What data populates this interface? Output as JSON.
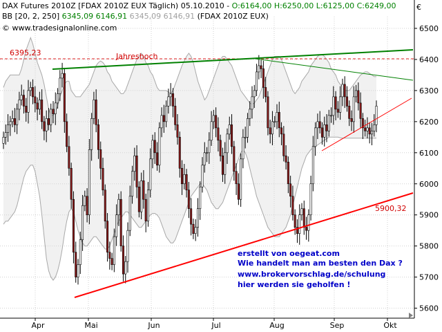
{
  "header": {
    "line1_prefix": "DAX Futures 2010Z [FDAX 2010Z EUX",
    "line1_date": "Täglich) 05.10.2010 - ",
    "line1_ohlc": "O:6164,00 H:6250,00 L:6125,00 C:6249,00",
    "line2_prefix": "BB [20, 2, 250]",
    "line2_values_green": "6345,09 6146,91",
    "line2_values_gray": "6345,09 6146,91",
    "line2_suffix": "(FDAX 2010Z EUX)",
    "line3": "© www.tradesignalonline.com",
    "currency_symbol": "€"
  },
  "annotations": {
    "line1": "erstellt von oegeat.com",
    "line2": "Wie handelt man am besten den Dax ?",
    "line3": "www.brokervorschlag.de/schulung",
    "line4": "hier werden sie geholfen !"
  },
  "colors": {
    "up_candle": "#ffffff",
    "down_candle": "#8b1a1a",
    "band": "#a8a8a8",
    "green_line": "#008000",
    "red_line": "#ff0000",
    "dashed": "#e02020"
  },
  "chart_data": {
    "type": "candlestick",
    "ylim": [
      5560,
      6560
    ],
    "y_ticks": [
      "6500",
      "6400",
      "6300",
      "6200",
      "6100",
      "6000",
      "5900",
      "5800",
      "5700",
      "5600"
    ],
    "x_ticks": [
      "Apr",
      "Mai",
      "Jun",
      "Jul",
      "Aug",
      "Sep",
      "Okt"
    ],
    "levels": [
      {
        "label": "6395,23",
        "value": 6395.23
      },
      {
        "label": "Jahreshoch",
        "value": 6395.23
      },
      {
        "label": "5900,32",
        "value": 5900.32
      }
    ],
    "closes": [
      6150,
      6165,
      6190,
      6200,
      6210,
      6190,
      6240,
      6270,
      6285,
      6250,
      6230,
      6300,
      6310,
      6280,
      6260,
      6240,
      6270,
      6200,
      6170,
      6210,
      6190,
      6240,
      6225,
      6260,
      6290,
      6340,
      6355,
      6200,
      6120,
      6050,
      5950,
      5780,
      5700,
      5740,
      5820,
      5930,
      5960,
      5900,
      6110,
      6210,
      6270,
      6190,
      6110,
      6050,
      5980,
      5880,
      5780,
      5760,
      5740,
      5830,
      5900,
      5950,
      5800,
      5710,
      5750,
      5850,
      5960,
      6040,
      6090,
      5990,
      5910,
      6010,
      5950,
      5880,
      5980,
      6080,
      6140,
      6100,
      6060,
      6180,
      6220,
      6200,
      6250,
      6280,
      6290,
      6250,
      6190,
      6150,
      6050,
      6000,
      6030,
      5980,
      5920,
      5870,
      5840,
      5860,
      5920,
      5990,
      6060,
      6100,
      6100,
      6140,
      6200,
      6220,
      6180,
      6140,
      6090,
      6030,
      6100,
      6160,
      6190,
      6120,
      6040,
      6000,
      5950,
      6080,
      6150,
      6150,
      6210,
      6240,
      6280,
      6300,
      6360,
      6380,
      6370,
      6310,
      6280,
      6180,
      6160,
      6200,
      6200,
      6230,
      6180,
      6160,
      6090,
      6070,
      6000,
      5960,
      5900,
      5860,
      5840,
      5900,
      5920,
      5860,
      5850,
      5900,
      6000,
      6120,
      6180,
      6200,
      6180,
      6150,
      6190,
      6170,
      6220,
      6220,
      6280,
      6240,
      6230,
      6280,
      6320,
      6280,
      6250,
      6210,
      6200,
      6280,
      6300,
      6260,
      6210,
      6180,
      6170,
      6180,
      6160,
      6170,
      6190,
      6250
    ],
    "band_upper": [
      6310,
      6330,
      6340,
      6350,
      6350,
      6350,
      6350,
      6350,
      6370,
      6400,
      6430,
      6450,
      6470,
      6450,
      6420,
      6390,
      6370,
      6350,
      6320,
      6280,
      6240,
      6220,
      6220,
      6230,
      6250,
      6280,
      6300,
      6320,
      6330,
      6330,
      6300,
      6290,
      6280,
      6280,
      6280,
      6290,
      6300,
      6310,
      6320,
      6340,
      6360,
      6380,
      6390,
      6395,
      6390,
      6380,
      6360,
      6350,
      6330,
      6320,
      6310,
      6300,
      6290,
      6290,
      6300,
      6320,
      6340,
      6360,
      6380,
      6400,
      6410,
      6420,
      6410,
      6390,
      6380,
      6360,
      6350,
      6330,
      6310,
      6300,
      6300,
      6300,
      6300,
      6295,
      6290,
      6300,
      6320,
      6340,
      6360,
      6380,
      6395,
      6410,
      6420,
      6410,
      6390,
      6360,
      6330,
      6310,
      6290,
      6270,
      6280,
      6300,
      6320,
      6340,
      6360,
      6380,
      6400,
      6410,
      6410,
      6400,
      6390,
      6380,
      6360,
      6340,
      6320,
      6300,
      6290,
      6280,
      6270,
      6260,
      6255,
      6260,
      6270,
      6280,
      6300,
      6320,
      6340,
      6360,
      6380,
      6400,
      6410,
      6410,
      6410,
      6400,
      6380,
      6360,
      6340,
      6320,
      6300,
      6290,
      6300,
      6310,
      6330,
      6340,
      6350,
      6360,
      6380,
      6390,
      6400,
      6410,
      6415,
      6415,
      6410,
      6400,
      6390,
      6370,
      6360,
      6350,
      6330,
      6320,
      6310,
      6300,
      6300,
      6300,
      6310,
      6320,
      6330,
      6340,
      6350,
      6355,
      6360,
      6360,
      6355,
      6350,
      6345,
      6345
    ],
    "band_lower": [
      5870,
      5880,
      5880,
      5890,
      5900,
      5910,
      5930,
      5960,
      5990,
      6020,
      6040,
      6050,
      6060,
      6060,
      6040,
      6000,
      5960,
      5900,
      5830,
      5760,
      5720,
      5700,
      5690,
      5700,
      5720,
      5750,
      5790,
      5840,
      5880,
      5910,
      5920,
      5910,
      5880,
      5850,
      5830,
      5810,
      5800,
      5800,
      5810,
      5820,
      5830,
      5830,
      5820,
      5810,
      5800,
      5790,
      5790,
      5800,
      5820,
      5840,
      5860,
      5880,
      5890,
      5900,
      5910,
      5910,
      5900,
      5890,
      5880,
      5870,
      5860,
      5860,
      5870,
      5880,
      5890,
      5900,
      5905,
      5905,
      5900,
      5890,
      5870,
      5850,
      5830,
      5820,
      5810,
      5810,
      5820,
      5840,
      5860,
      5880,
      5900,
      5920,
      5940,
      5960,
      5970,
      5980,
      5990,
      6000,
      6000,
      5990,
      5980,
      5960,
      5940,
      5930,
      5920,
      5920,
      5930,
      5940,
      5960,
      5980,
      6000,
      6020,
      6040,
      6060,
      6080,
      6100,
      6110,
      6100,
      6080,
      6050,
      6020,
      5990,
      5960,
      5940,
      5920,
      5900,
      5880,
      5860,
      5850,
      5840,
      5830,
      5830,
      5830,
      5840,
      5850,
      5860,
      5880,
      5900,
      5930,
      5960,
      5990,
      6020,
      6050,
      6070,
      6090,
      6100,
      6110,
      6115,
      6120,
      6125,
      6130,
      6135,
      6140,
      6145,
      6150,
      6150,
      6150,
      6150,
      6150,
      6148,
      6147,
      6147,
      6147,
      6147,
      6147,
      6147,
      6147,
      6147,
      6147,
      6147,
      6147,
      6147,
      6147,
      6147,
      6147,
      6147
    ]
  }
}
